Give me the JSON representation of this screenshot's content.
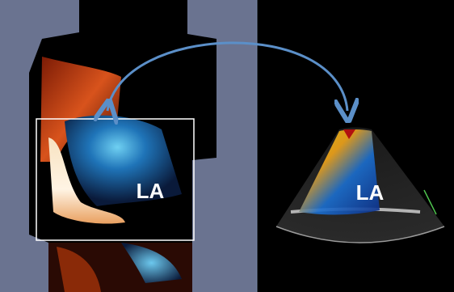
{
  "left_panel": {
    "label": "LA"
  },
  "right_panel": {
    "label": "LA"
  }
}
